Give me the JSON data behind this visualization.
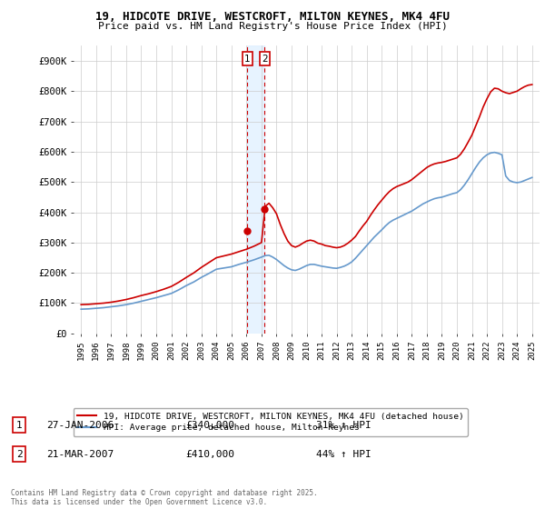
{
  "title": "19, HIDCOTE DRIVE, WESTCROFT, MILTON KEYNES, MK4 4FU",
  "subtitle": "Price paid vs. HM Land Registry's House Price Index (HPI)",
  "legend_label_red": "19, HIDCOTE DRIVE, WESTCROFT, MILTON KEYNES, MK4 4FU (detached house)",
  "legend_label_blue": "HPI: Average price, detached house, Milton Keynes",
  "footer": "Contains HM Land Registry data © Crown copyright and database right 2025.\nThis data is licensed under the Open Government Licence v3.0.",
  "sale1_label": "1",
  "sale1_date": "27-JAN-2006",
  "sale1_price": "£340,000",
  "sale1_hpi": "31% ↑ HPI",
  "sale2_label": "2",
  "sale2_date": "21-MAR-2007",
  "sale2_price": "£410,000",
  "sale2_hpi": "44% ↑ HPI",
  "sale1_x": 2006.07,
  "sale2_x": 2007.22,
  "sale1_y": 340000,
  "sale2_y": 410000,
  "ylim_min": 0,
  "ylim_max": 950000,
  "xlim_min": 1994.5,
  "xlim_max": 2025.5,
  "yticks": [
    0,
    100000,
    200000,
    300000,
    400000,
    500000,
    600000,
    700000,
    800000,
    900000
  ],
  "ytick_labels": [
    "£0",
    "£100K",
    "£200K",
    "£300K",
    "£400K",
    "£500K",
    "£600K",
    "£700K",
    "£800K",
    "£900K"
  ],
  "xticks": [
    1995,
    1996,
    1997,
    1998,
    1999,
    2000,
    2001,
    2002,
    2003,
    2004,
    2005,
    2006,
    2007,
    2008,
    2009,
    2010,
    2011,
    2012,
    2013,
    2014,
    2015,
    2016,
    2017,
    2018,
    2019,
    2020,
    2021,
    2022,
    2023,
    2024,
    2025
  ],
  "red_color": "#cc0000",
  "blue_color": "#6699cc",
  "vline_color": "#cc0000",
  "fill_color": "#ddeeff",
  "background_color": "#ffffff",
  "grid_color": "#cccccc",
  "hpi_red": [
    [
      1995.0,
      95000
    ],
    [
      1995.5,
      96000
    ],
    [
      1996.0,
      98000
    ],
    [
      1996.5,
      100000
    ],
    [
      1997.0,
      103000
    ],
    [
      1997.5,
      107000
    ],
    [
      1998.0,
      112000
    ],
    [
      1998.5,
      118000
    ],
    [
      1999.0,
      125000
    ],
    [
      1999.5,
      131000
    ],
    [
      2000.0,
      138000
    ],
    [
      2000.5,
      146000
    ],
    [
      2001.0,
      155000
    ],
    [
      2001.5,
      169000
    ],
    [
      2002.0,
      185000
    ],
    [
      2002.5,
      200000
    ],
    [
      2003.0,
      218000
    ],
    [
      2003.5,
      234000
    ],
    [
      2004.0,
      250000
    ],
    [
      2004.5,
      256000
    ],
    [
      2005.0,
      262000
    ],
    [
      2005.5,
      270000
    ],
    [
      2006.0,
      278000
    ],
    [
      2006.5,
      288000
    ],
    [
      2007.0,
      300000
    ],
    [
      2007.25,
      420000
    ],
    [
      2007.5,
      430000
    ],
    [
      2007.75,
      415000
    ],
    [
      2008.0,
      395000
    ],
    [
      2008.25,
      360000
    ],
    [
      2008.5,
      330000
    ],
    [
      2008.75,
      305000
    ],
    [
      2009.0,
      290000
    ],
    [
      2009.25,
      285000
    ],
    [
      2009.5,
      290000
    ],
    [
      2009.75,
      298000
    ],
    [
      2010.0,
      305000
    ],
    [
      2010.25,
      308000
    ],
    [
      2010.5,
      305000
    ],
    [
      2010.75,
      298000
    ],
    [
      2011.0,
      295000
    ],
    [
      2011.25,
      290000
    ],
    [
      2011.5,
      288000
    ],
    [
      2011.75,
      285000
    ],
    [
      2012.0,
      283000
    ],
    [
      2012.25,
      285000
    ],
    [
      2012.5,
      290000
    ],
    [
      2012.75,
      298000
    ],
    [
      2013.0,
      308000
    ],
    [
      2013.25,
      320000
    ],
    [
      2013.5,
      338000
    ],
    [
      2013.75,
      355000
    ],
    [
      2014.0,
      370000
    ],
    [
      2014.25,
      390000
    ],
    [
      2014.5,
      408000
    ],
    [
      2014.75,
      425000
    ],
    [
      2015.0,
      440000
    ],
    [
      2015.25,
      455000
    ],
    [
      2015.5,
      468000
    ],
    [
      2015.75,
      478000
    ],
    [
      2016.0,
      485000
    ],
    [
      2016.25,
      490000
    ],
    [
      2016.5,
      495000
    ],
    [
      2016.75,
      500000
    ],
    [
      2017.0,
      508000
    ],
    [
      2017.25,
      518000
    ],
    [
      2017.5,
      528000
    ],
    [
      2017.75,
      538000
    ],
    [
      2018.0,
      548000
    ],
    [
      2018.25,
      555000
    ],
    [
      2018.5,
      560000
    ],
    [
      2018.75,
      563000
    ],
    [
      2019.0,
      565000
    ],
    [
      2019.25,
      568000
    ],
    [
      2019.5,
      572000
    ],
    [
      2019.75,
      576000
    ],
    [
      2020.0,
      580000
    ],
    [
      2020.25,
      592000
    ],
    [
      2020.5,
      610000
    ],
    [
      2020.75,
      632000
    ],
    [
      2021.0,
      655000
    ],
    [
      2021.25,
      685000
    ],
    [
      2021.5,
      715000
    ],
    [
      2021.75,
      748000
    ],
    [
      2022.0,
      775000
    ],
    [
      2022.25,
      798000
    ],
    [
      2022.5,
      810000
    ],
    [
      2022.75,
      808000
    ],
    [
      2023.0,
      800000
    ],
    [
      2023.25,
      795000
    ],
    [
      2023.5,
      792000
    ],
    [
      2023.75,
      796000
    ],
    [
      2024.0,
      800000
    ],
    [
      2024.25,
      808000
    ],
    [
      2024.5,
      815000
    ],
    [
      2024.75,
      820000
    ],
    [
      2025.0,
      822000
    ]
  ],
  "hpi_blue": [
    [
      1995.0,
      80000
    ],
    [
      1995.5,
      81000
    ],
    [
      1996.0,
      83000
    ],
    [
      1996.5,
      85000
    ],
    [
      1997.0,
      88000
    ],
    [
      1997.5,
      91000
    ],
    [
      1998.0,
      95000
    ],
    [
      1998.5,
      100000
    ],
    [
      1999.0,
      106000
    ],
    [
      1999.5,
      112000
    ],
    [
      2000.0,
      118000
    ],
    [
      2000.5,
      125000
    ],
    [
      2001.0,
      132000
    ],
    [
      2001.5,
      144000
    ],
    [
      2002.0,
      158000
    ],
    [
      2002.5,
      170000
    ],
    [
      2003.0,
      185000
    ],
    [
      2003.5,
      198000
    ],
    [
      2004.0,
      212000
    ],
    [
      2004.5,
      216000
    ],
    [
      2005.0,
      220000
    ],
    [
      2005.5,
      228000
    ],
    [
      2006.0,
      235000
    ],
    [
      2006.5,
      243000
    ],
    [
      2007.0,
      252000
    ],
    [
      2007.25,
      257000
    ],
    [
      2007.5,
      258000
    ],
    [
      2007.75,
      252000
    ],
    [
      2008.0,
      244000
    ],
    [
      2008.25,
      234000
    ],
    [
      2008.5,
      224000
    ],
    [
      2008.75,
      216000
    ],
    [
      2009.0,
      210000
    ],
    [
      2009.25,
      208000
    ],
    [
      2009.5,
      212000
    ],
    [
      2009.75,
      218000
    ],
    [
      2010.0,
      224000
    ],
    [
      2010.25,
      228000
    ],
    [
      2010.5,
      228000
    ],
    [
      2010.75,
      225000
    ],
    [
      2011.0,
      222000
    ],
    [
      2011.25,
      220000
    ],
    [
      2011.5,
      218000
    ],
    [
      2011.75,
      216000
    ],
    [
      2012.0,
      215000
    ],
    [
      2012.25,
      218000
    ],
    [
      2012.5,
      222000
    ],
    [
      2012.75,
      228000
    ],
    [
      2013.0,
      236000
    ],
    [
      2013.25,
      248000
    ],
    [
      2013.5,
      262000
    ],
    [
      2013.75,
      276000
    ],
    [
      2014.0,
      290000
    ],
    [
      2014.25,
      304000
    ],
    [
      2014.5,
      318000
    ],
    [
      2014.75,
      330000
    ],
    [
      2015.0,
      342000
    ],
    [
      2015.25,
      355000
    ],
    [
      2015.5,
      366000
    ],
    [
      2015.75,
      374000
    ],
    [
      2016.0,
      380000
    ],
    [
      2016.25,
      386000
    ],
    [
      2016.5,
      392000
    ],
    [
      2016.75,
      398000
    ],
    [
      2017.0,
      404000
    ],
    [
      2017.25,
      412000
    ],
    [
      2017.5,
      420000
    ],
    [
      2017.75,
      428000
    ],
    [
      2018.0,
      434000
    ],
    [
      2018.25,
      440000
    ],
    [
      2018.5,
      445000
    ],
    [
      2018.75,
      448000
    ],
    [
      2019.0,
      450000
    ],
    [
      2019.25,
      454000
    ],
    [
      2019.5,
      458000
    ],
    [
      2019.75,
      462000
    ],
    [
      2020.0,
      465000
    ],
    [
      2020.25,
      475000
    ],
    [
      2020.5,
      490000
    ],
    [
      2020.75,
      508000
    ],
    [
      2021.0,
      528000
    ],
    [
      2021.25,
      548000
    ],
    [
      2021.5,
      566000
    ],
    [
      2021.75,
      580000
    ],
    [
      2022.0,
      590000
    ],
    [
      2022.25,
      596000
    ],
    [
      2022.5,
      598000
    ],
    [
      2022.75,
      595000
    ],
    [
      2023.0,
      590000
    ],
    [
      2023.25,
      520000
    ],
    [
      2023.5,
      505000
    ],
    [
      2023.75,
      500000
    ],
    [
      2024.0,
      498000
    ],
    [
      2024.25,
      500000
    ],
    [
      2024.5,
      505000
    ],
    [
      2024.75,
      510000
    ],
    [
      2025.0,
      515000
    ]
  ]
}
